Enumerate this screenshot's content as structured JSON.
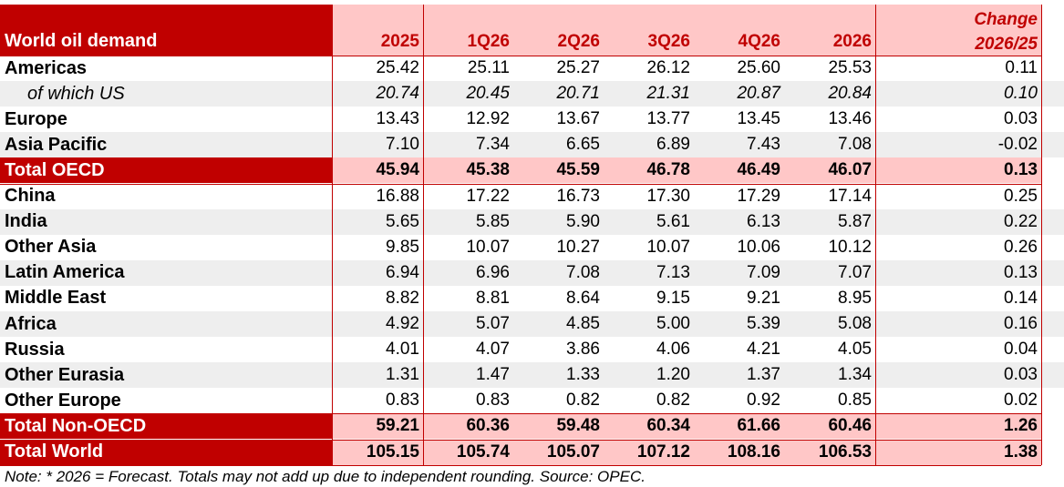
{
  "table": {
    "header": {
      "label": "World oil demand",
      "columns": [
        "2025",
        "1Q26",
        "2Q26",
        "3Q26",
        "4Q26",
        "2026"
      ],
      "change_line1": "Change",
      "change_line2": "2026/25"
    },
    "rows": [
      {
        "label": "Americas",
        "values": [
          "25.42",
          "25.11",
          "25.27",
          "26.12",
          "25.60",
          "25.53"
        ],
        "change": "0.11",
        "style": "normal",
        "shaded": false
      },
      {
        "label": "of which US",
        "values": [
          "20.74",
          "20.45",
          "20.71",
          "21.31",
          "20.87",
          "20.84"
        ],
        "change": "0.10",
        "style": "italic",
        "shaded": true
      },
      {
        "label": "Europe",
        "values": [
          "13.43",
          "12.92",
          "13.67",
          "13.77",
          "13.45",
          "13.46"
        ],
        "change": "0.03",
        "style": "normal",
        "shaded": false
      },
      {
        "label": "Asia Pacific",
        "values": [
          "7.10",
          "7.34",
          "6.65",
          "6.89",
          "7.43",
          "7.08"
        ],
        "change": "-0.02",
        "style": "normal",
        "shaded": true
      },
      {
        "label": "Total OECD",
        "values": [
          "45.94",
          "45.38",
          "45.59",
          "46.78",
          "46.49",
          "46.07"
        ],
        "change": "0.13",
        "style": "total",
        "shaded": false
      },
      {
        "label": "China",
        "values": [
          "16.88",
          "17.22",
          "16.73",
          "17.30",
          "17.29",
          "17.14"
        ],
        "change": "0.25",
        "style": "normal",
        "shaded": false
      },
      {
        "label": "India",
        "values": [
          "5.65",
          "5.85",
          "5.90",
          "5.61",
          "6.13",
          "5.87"
        ],
        "change": "0.22",
        "style": "normal",
        "shaded": true
      },
      {
        "label": "Other Asia",
        "values": [
          "9.85",
          "10.07",
          "10.27",
          "10.07",
          "10.06",
          "10.12"
        ],
        "change": "0.26",
        "style": "normal",
        "shaded": false
      },
      {
        "label": "Latin America",
        "values": [
          "6.94",
          "6.96",
          "7.08",
          "7.13",
          "7.09",
          "7.07"
        ],
        "change": "0.13",
        "style": "normal",
        "shaded": true
      },
      {
        "label": "Middle East",
        "values": [
          "8.82",
          "8.81",
          "8.64",
          "9.15",
          "9.21",
          "8.95"
        ],
        "change": "0.14",
        "style": "normal",
        "shaded": false
      },
      {
        "label": "Africa",
        "values": [
          "4.92",
          "5.07",
          "4.85",
          "5.00",
          "5.39",
          "5.08"
        ],
        "change": "0.16",
        "style": "normal",
        "shaded": true
      },
      {
        "label": "Russia",
        "values": [
          "4.01",
          "4.07",
          "3.86",
          "4.06",
          "4.21",
          "4.05"
        ],
        "change": "0.04",
        "style": "normal",
        "shaded": false
      },
      {
        "label": "Other Eurasia",
        "values": [
          "1.31",
          "1.47",
          "1.33",
          "1.20",
          "1.37",
          "1.34"
        ],
        "change": "0.03",
        "style": "normal",
        "shaded": true
      },
      {
        "label": "Other Europe",
        "values": [
          "0.83",
          "0.83",
          "0.82",
          "0.82",
          "0.92",
          "0.85"
        ],
        "change": "0.02",
        "style": "normal",
        "shaded": false
      },
      {
        "label": "Total Non-OECD",
        "values": [
          "59.21",
          "60.36",
          "59.48",
          "60.34",
          "61.66",
          "60.46"
        ],
        "change": "1.26",
        "style": "total",
        "shaded": false
      },
      {
        "label": "Total World",
        "values": [
          "105.15",
          "105.74",
          "105.07",
          "107.12",
          "108.16",
          "106.53"
        ],
        "change": "1.38",
        "style": "total",
        "shaded": false
      }
    ]
  },
  "note": "Note: * 2026 = Forecast. Totals may not add up due to independent rounding. Source: OPEC.",
  "colors": {
    "header_red": "#c00000",
    "light_pink": "#ffc7c7",
    "header_text_red": "#c00000",
    "row_shade": "#eeeeee"
  }
}
